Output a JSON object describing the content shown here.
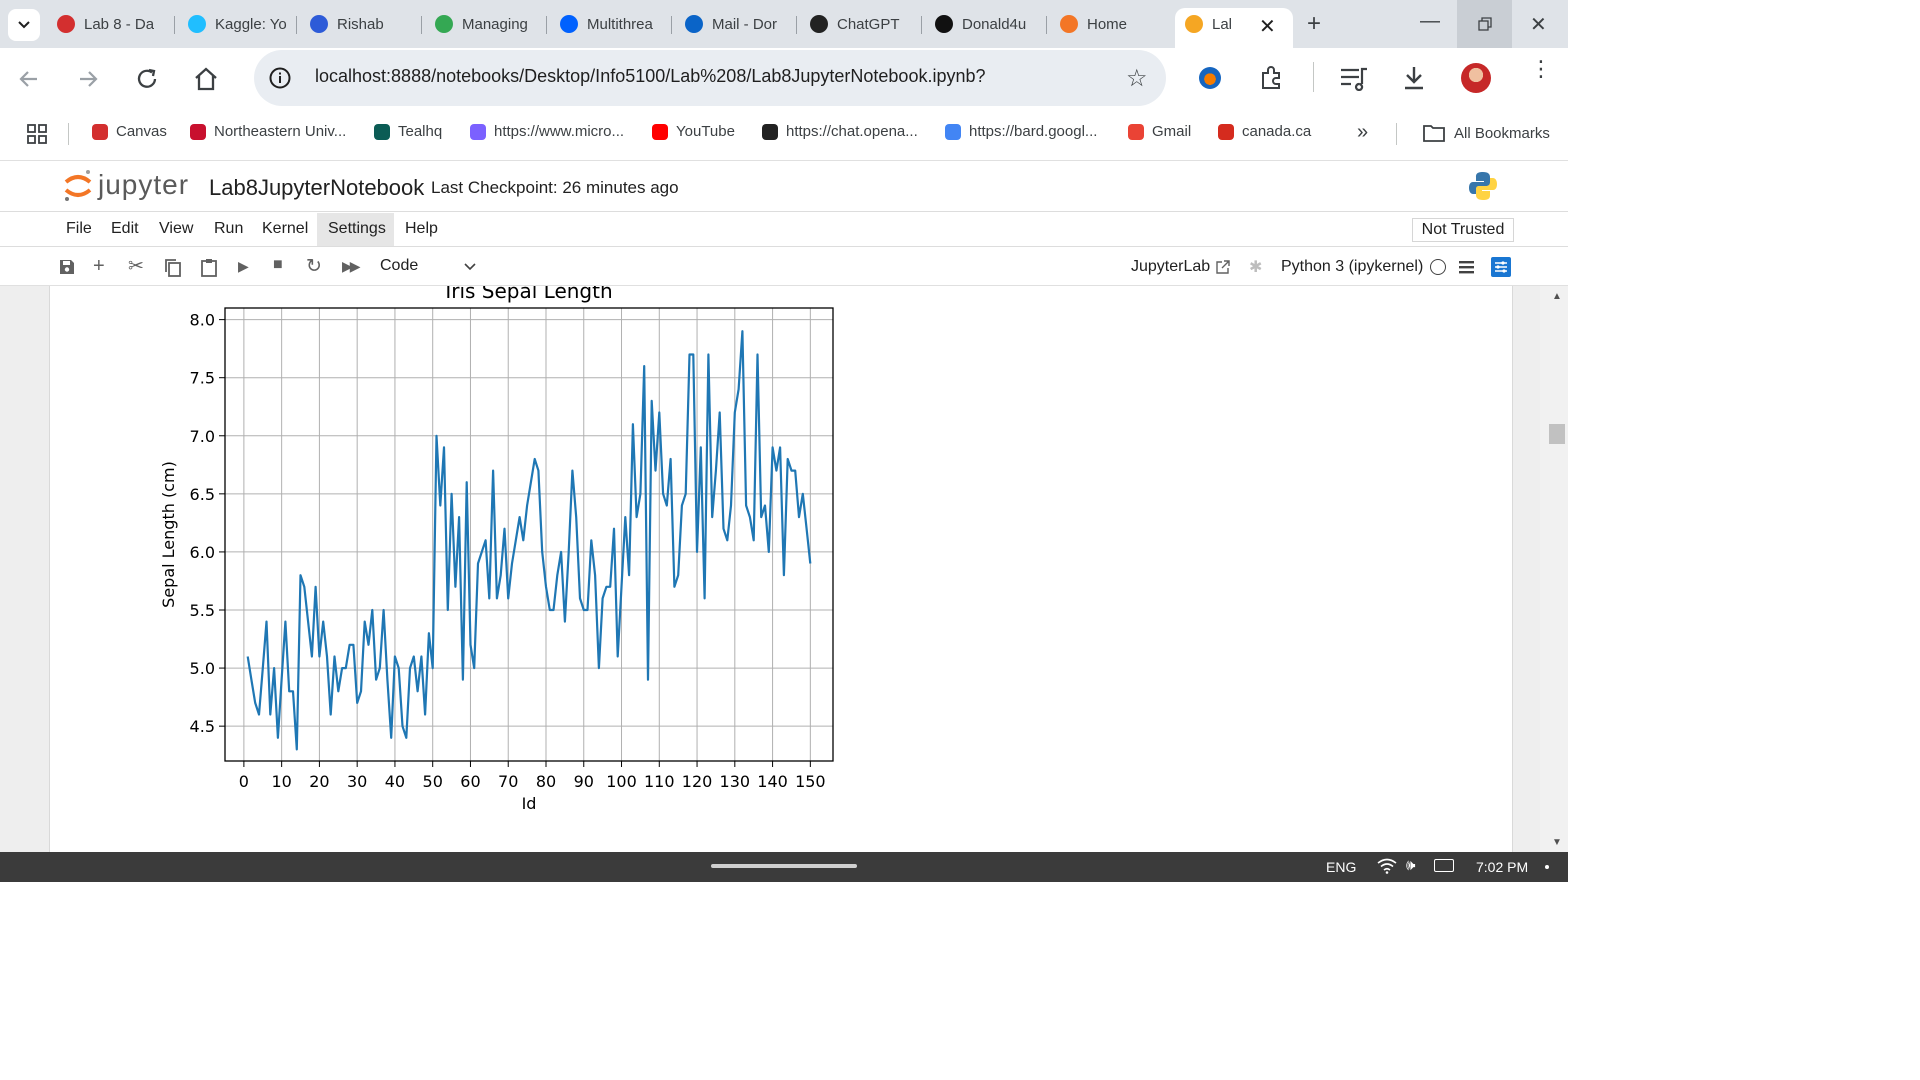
{
  "browser": {
    "tabs": [
      {
        "label": "Lab 8 - Da",
        "icon": "canvas-icon",
        "color": "#d32f2f"
      },
      {
        "label": "Kaggle: Yo",
        "icon": "kaggle-icon",
        "color": "#20beff"
      },
      {
        "label": "Rishab",
        "icon": "zoom-icon",
        "color": "#2d5bd8"
      },
      {
        "label": "Managing",
        "icon": "loader-icon",
        "color": "#34a853"
      },
      {
        "label": "Multithrea",
        "icon": "dropbox-icon",
        "color": "#0061fe"
      },
      {
        "label": "Mail - Dor",
        "icon": "outlook-icon",
        "color": "#0a64c8"
      },
      {
        "label": "ChatGPT",
        "icon": "chatgpt-icon",
        "color": "#222222"
      },
      {
        "label": "Donald4u",
        "icon": "github-icon",
        "color": "#111111"
      },
      {
        "label": "Home",
        "icon": "jupyter-icon",
        "color": "#f37626"
      },
      {
        "label": "Lal",
        "icon": "notebook-icon",
        "color": "#f5a623"
      }
    ],
    "address": "localhost:8888/notebooks/Desktop/Info5100/Lab%208/Lab8JupyterNotebook.ipynb?",
    "bookmarks": [
      {
        "label": "Canvas",
        "icon": "canvas-icon",
        "color": "#d32f2f"
      },
      {
        "label": "Northeastern Univ...",
        "icon": "northeastern-icon",
        "color": "#c8102e"
      },
      {
        "label": "Tealhq",
        "icon": "tealhq-icon",
        "color": "#0b5c55"
      },
      {
        "label": "https://www.micro...",
        "icon": "copilot-icon",
        "color": "#7b61ff"
      },
      {
        "label": "YouTube",
        "icon": "youtube-icon",
        "color": "#ff0000"
      },
      {
        "label": "https://chat.opena...",
        "icon": "chatgpt-icon",
        "color": "#222222"
      },
      {
        "label": "https://bard.googl...",
        "icon": "bard-icon",
        "color": "#4285f4"
      },
      {
        "label": "Gmail",
        "icon": "gmail-icon",
        "color": "#ea4335"
      },
      {
        "label": "canada.ca",
        "icon": "maple-leaf-icon",
        "color": "#d52b1e"
      }
    ],
    "all_bookmarks": "All Bookmarks",
    "overflow": "»"
  },
  "jupyter": {
    "logo_text": "jupyter",
    "notebook_name": "Lab8JupyterNotebook",
    "checkpoint": "Last Checkpoint: 26 minutes ago",
    "menus": [
      "File",
      "Edit",
      "View",
      "Run",
      "Kernel",
      "Settings",
      "Help"
    ],
    "trust": "Not Trusted",
    "cell_type": "Code",
    "jupyterlab_link": "JupyterLab",
    "kernel": "Python 3 (ipykernel)"
  },
  "chart_data": {
    "type": "line",
    "title": "Iris Sepal Length",
    "xlabel": "Id",
    "ylabel": "Sepal Length (cm)",
    "xlim": [
      -5,
      156
    ],
    "ylim": [
      4.2,
      8.1
    ],
    "xticks": [
      0,
      10,
      20,
      30,
      40,
      50,
      60,
      70,
      80,
      90,
      100,
      110,
      120,
      130,
      140,
      150
    ],
    "yticks": [
      4.5,
      5.0,
      5.5,
      6.0,
      6.5,
      7.0,
      7.5,
      8.0
    ],
    "grid": true,
    "color": "#1f77b4",
    "x": [
      1,
      2,
      3,
      4,
      5,
      6,
      7,
      8,
      9,
      10,
      11,
      12,
      13,
      14,
      15,
      16,
      17,
      18,
      19,
      20,
      21,
      22,
      23,
      24,
      25,
      26,
      27,
      28,
      29,
      30,
      31,
      32,
      33,
      34,
      35,
      36,
      37,
      38,
      39,
      40,
      41,
      42,
      43,
      44,
      45,
      46,
      47,
      48,
      49,
      50,
      51,
      52,
      53,
      54,
      55,
      56,
      57,
      58,
      59,
      60,
      61,
      62,
      63,
      64,
      65,
      66,
      67,
      68,
      69,
      70,
      71,
      72,
      73,
      74,
      75,
      76,
      77,
      78,
      79,
      80,
      81,
      82,
      83,
      84,
      85,
      86,
      87,
      88,
      89,
      90,
      91,
      92,
      93,
      94,
      95,
      96,
      97,
      98,
      99,
      100,
      101,
      102,
      103,
      104,
      105,
      106,
      107,
      108,
      109,
      110,
      111,
      112,
      113,
      114,
      115,
      116,
      117,
      118,
      119,
      120,
      121,
      122,
      123,
      124,
      125,
      126,
      127,
      128,
      129,
      130,
      131,
      132,
      133,
      134,
      135,
      136,
      137,
      138,
      139,
      140,
      141,
      142,
      143,
      144,
      145,
      146,
      147,
      148,
      149,
      150
    ],
    "y": [
      5.1,
      4.9,
      4.7,
      4.6,
      5.0,
      5.4,
      4.6,
      5.0,
      4.4,
      4.9,
      5.4,
      4.8,
      4.8,
      4.3,
      5.8,
      5.7,
      5.4,
      5.1,
      5.7,
      5.1,
      5.4,
      5.1,
      4.6,
      5.1,
      4.8,
      5.0,
      5.0,
      5.2,
      5.2,
      4.7,
      4.8,
      5.4,
      5.2,
      5.5,
      4.9,
      5.0,
      5.5,
      4.9,
      4.4,
      5.1,
      5.0,
      4.5,
      4.4,
      5.0,
      5.1,
      4.8,
      5.1,
      4.6,
      5.3,
      5.0,
      7.0,
      6.4,
      6.9,
      5.5,
      6.5,
      5.7,
      6.3,
      4.9,
      6.6,
      5.2,
      5.0,
      5.9,
      6.0,
      6.1,
      5.6,
      6.7,
      5.6,
      5.8,
      6.2,
      5.6,
      5.9,
      6.1,
      6.3,
      6.1,
      6.4,
      6.6,
      6.8,
      6.7,
      6.0,
      5.7,
      5.5,
      5.5,
      5.8,
      6.0,
      5.4,
      6.0,
      6.7,
      6.3,
      5.6,
      5.5,
      5.5,
      6.1,
      5.8,
      5.0,
      5.6,
      5.7,
      5.7,
      6.2,
      5.1,
      5.7,
      6.3,
      5.8,
      7.1,
      6.3,
      6.5,
      7.6,
      4.9,
      7.3,
      6.7,
      7.2,
      6.5,
      6.4,
      6.8,
      5.7,
      5.8,
      6.4,
      6.5,
      7.7,
      7.7,
      6.0,
      6.9,
      5.6,
      7.7,
      6.3,
      6.7,
      7.2,
      6.2,
      6.1,
      6.4,
      7.2,
      7.4,
      7.9,
      6.4,
      6.3,
      6.1,
      7.7,
      6.3,
      6.4,
      6.0,
      6.9,
      6.7,
      6.9,
      5.8,
      6.8,
      6.7,
      6.7,
      6.3,
      6.5,
      6.2,
      5.9
    ]
  },
  "taskbar": {
    "lang": "ENG",
    "time": "7:02 PM"
  }
}
